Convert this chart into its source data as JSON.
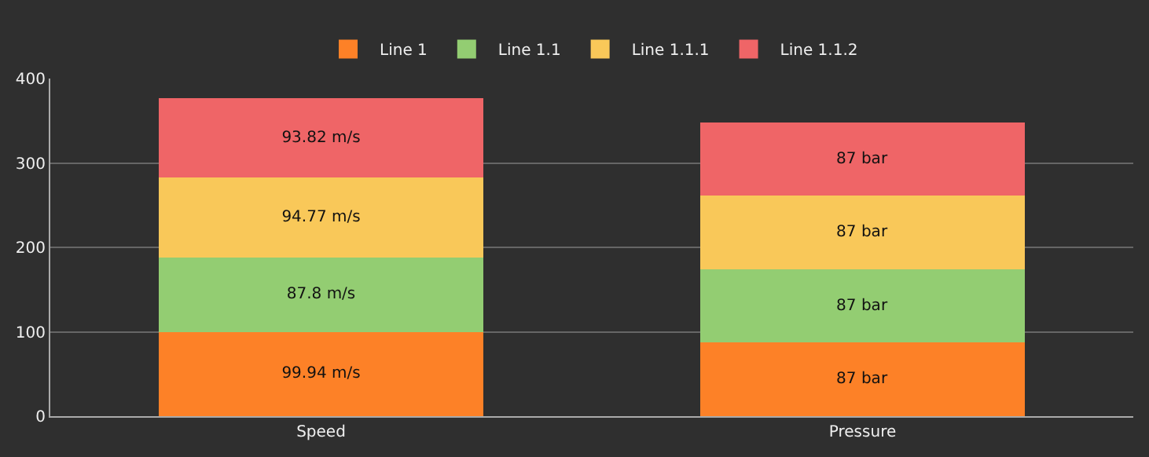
{
  "chart_data": {
    "type": "bar",
    "stacked": true,
    "categories": [
      "Speed",
      "Pressure"
    ],
    "series": [
      {
        "name": "Line 1",
        "color": "#fd8127",
        "values": [
          99.94,
          87
        ],
        "value_labels": [
          "99.94 m/s",
          "87 bar"
        ]
      },
      {
        "name": "Line 1.1",
        "color": "#93cd72",
        "values": [
          87.8,
          87
        ],
        "value_labels": [
          "87.8 m/s",
          "87 bar"
        ]
      },
      {
        "name": "Line 1.1.1",
        "color": "#f9c859",
        "values": [
          94.77,
          87
        ],
        "value_labels": [
          "94.77 m/s",
          "87 bar"
        ]
      },
      {
        "name": "Line 1.1.2",
        "color": "#ef6567",
        "values": [
          93.82,
          87
        ],
        "value_labels": [
          "93.82 m/s",
          "87 bar"
        ]
      }
    ],
    "ylim": [
      0,
      400
    ],
    "yticks": [
      0,
      100,
      200,
      300,
      400
    ],
    "grid": "y",
    "legend": "top"
  }
}
